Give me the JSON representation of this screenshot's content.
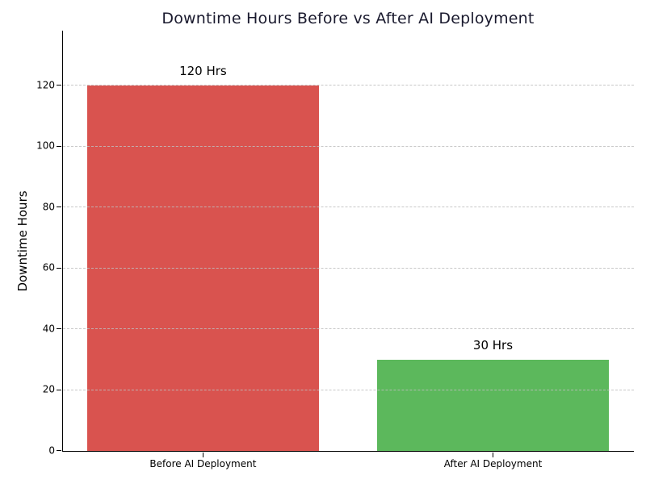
{
  "chart_data": {
    "type": "bar",
    "title": "Downtime Hours Before vs After AI Deployment",
    "xlabel": "",
    "ylabel": "Downtime Hours",
    "categories": [
      "Before AI Deployment",
      "After AI Deployment"
    ],
    "values": [
      120,
      30
    ],
    "value_labels": [
      "120 Hrs",
      "30 Hrs"
    ],
    "bar_colors": [
      "#d9534f",
      "#5cb85c"
    ],
    "yticks": [
      0,
      20,
      40,
      60,
      80,
      100,
      120
    ],
    "ylim": [
      0,
      138
    ],
    "xlim": [
      -0.483,
      1.486
    ],
    "bar_width": 0.8,
    "grid": {
      "axis": "y",
      "style": "dashed",
      "color": "#bfbfbf",
      "over_bars": true
    },
    "legend": "none",
    "title_color": "#1a1a2e",
    "text_color": "#000000",
    "spines": {
      "left": true,
      "bottom": true,
      "top": false,
      "right": false
    }
  }
}
